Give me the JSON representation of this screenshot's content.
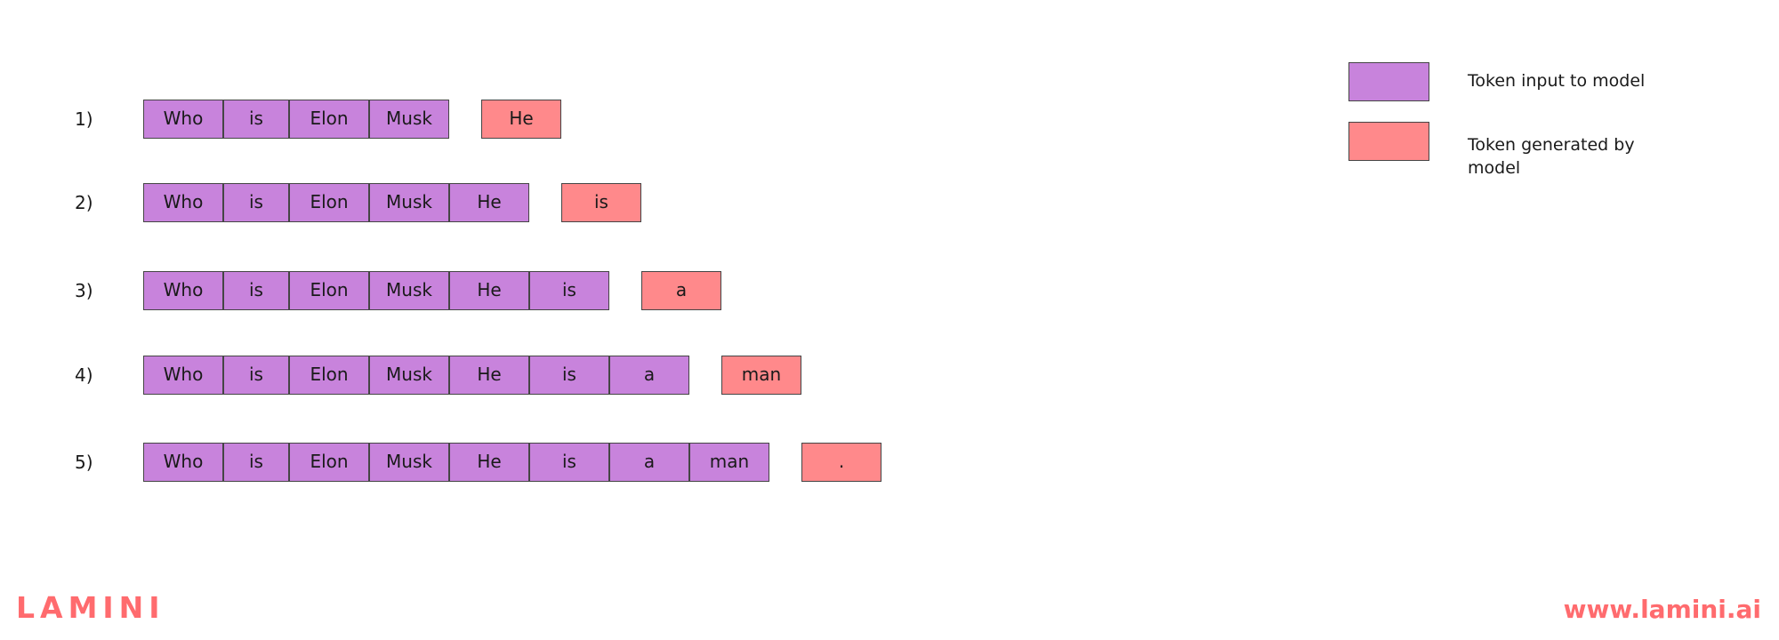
{
  "colors": {
    "input_token": "#c883dc",
    "generated_token": "#ff898b",
    "border": "#454545",
    "brand": "#ff6b6e"
  },
  "rows": [
    {
      "label": "1)",
      "input_tokens": [
        "Who",
        "is",
        "Elon",
        "Musk"
      ],
      "generated_token": "He"
    },
    {
      "label": "2)",
      "input_tokens": [
        "Who",
        "is",
        "Elon",
        "Musk",
        "He"
      ],
      "generated_token": "is"
    },
    {
      "label": "3)",
      "input_tokens": [
        "Who",
        "is",
        "Elon",
        "Musk",
        "He",
        "is"
      ],
      "generated_token": "a"
    },
    {
      "label": "4)",
      "input_tokens": [
        "Who",
        "is",
        "Elon",
        "Musk",
        "He",
        "is",
        "a"
      ],
      "generated_token": "man"
    },
    {
      "label": "5)",
      "input_tokens": [
        "Who",
        "is",
        "Elon",
        "Musk",
        "He",
        "is",
        "a",
        "man"
      ],
      "generated_token": "."
    }
  ],
  "legend": {
    "input_label": "Token input to model",
    "generated_label": "Token generated by model"
  },
  "branding": {
    "logo_text": "LAMINI",
    "url": "www.lamini.ai"
  }
}
